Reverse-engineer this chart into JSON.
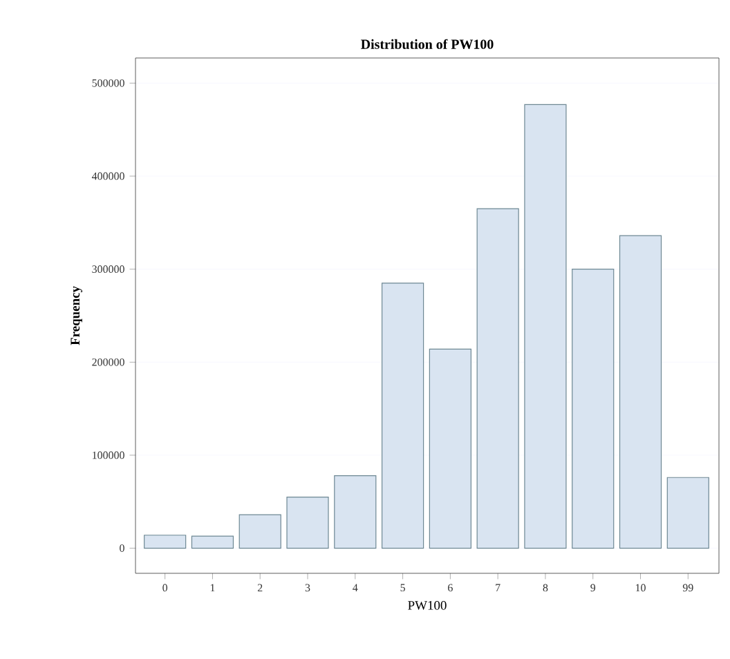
{
  "chart_data": {
    "type": "bar",
    "title": "Distribution of PW100",
    "xlabel": "PW100",
    "ylabel": "Frequency",
    "categories": [
      "0",
      "1",
      "2",
      "3",
      "4",
      "5",
      "6",
      "7",
      "8",
      "9",
      "10",
      "99"
    ],
    "values": [
      14000,
      13000,
      36000,
      55000,
      78000,
      285000,
      214000,
      365000,
      477000,
      300000,
      336000,
      76000
    ],
    "color": "#d9e4f1",
    "ylim": [
      -27000,
      527000
    ],
    "yticks": [
      0,
      100000,
      200000,
      300000,
      400000,
      500000
    ],
    "grid": "y"
  }
}
